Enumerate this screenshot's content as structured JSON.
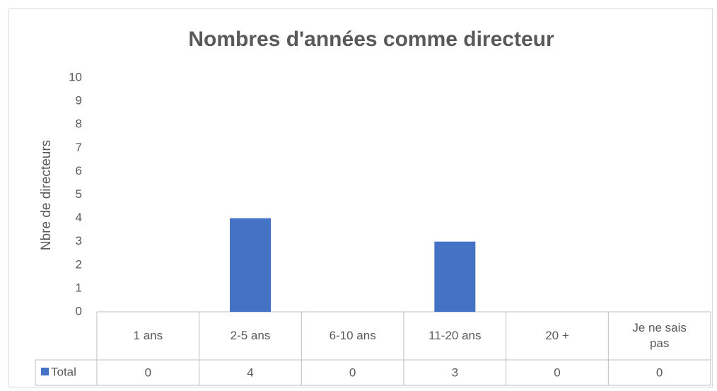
{
  "chart_data": {
    "type": "bar",
    "title": "Nombres d'années comme directeur",
    "y_label": "Nbre de directeurs",
    "categories": [
      "1 ans",
      "2-5 ans",
      "6-10 ans",
      "11-20 ans",
      "20 +",
      "Je ne sais pas"
    ],
    "series": [
      {
        "name": "Total",
        "color": "#4472c4",
        "values": [
          0,
          4,
          0,
          3,
          0,
          0
        ]
      }
    ],
    "ylim": [
      0,
      10
    ],
    "yticks": [
      0,
      1,
      2,
      3,
      4,
      5,
      6,
      7,
      8,
      9,
      10
    ],
    "grid": false
  }
}
